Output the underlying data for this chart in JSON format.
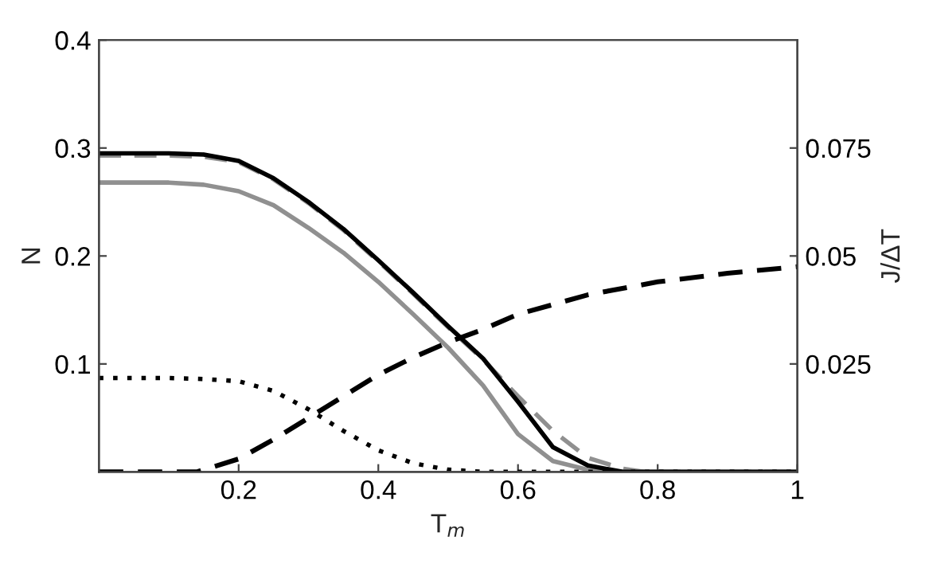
{
  "chart_data": {
    "type": "line",
    "xlabel": "T$_{m}$",
    "ylabel": "N",
    "y2label": "J/ΔT",
    "xlim": [
      0,
      1
    ],
    "xticks": [
      0.2,
      0.4,
      0.6,
      0.8,
      1
    ],
    "ylim": [
      0,
      0.4
    ],
    "yticks": [
      0.1,
      0.2,
      0.3,
      0.4
    ],
    "y2lim": [
      0,
      0.1
    ],
    "y2ticks": [
      0.025,
      0.05,
      0.075
    ],
    "grid": false,
    "legend": false,
    "marker": "none",
    "series": [
      {
        "color": "#909090",
        "line_style": "solid",
        "x": [
          0,
          0.1,
          0.15,
          0.2,
          0.25,
          0.3,
          0.35,
          0.4,
          0.45,
          0.5,
          0.55,
          0.6,
          0.65,
          0.7,
          0.73,
          1
        ],
        "values": [
          0.268,
          0.268,
          0.266,
          0.26,
          0.247,
          0.226,
          0.203,
          0.176,
          0.146,
          0.115,
          0.08,
          0.035,
          0.01,
          0.002,
          0,
          0
        ]
      },
      {
        "color": "#909090",
        "line_style": "dashed",
        "x": [
          0,
          0.1,
          0.15,
          0.2,
          0.25,
          0.3,
          0.35,
          0.4,
          0.45,
          0.5,
          0.55,
          0.6,
          0.65,
          0.7,
          0.75,
          0.78,
          1
        ],
        "values": [
          0.293,
          0.293,
          0.292,
          0.287,
          0.271,
          0.249,
          0.224,
          0.195,
          0.165,
          0.134,
          0.104,
          0.07,
          0.038,
          0.013,
          0.003,
          0,
          0
        ]
      },
      {
        "color": "#000000",
        "line_style": "solid",
        "x": [
          0,
          0.1,
          0.15,
          0.2,
          0.25,
          0.3,
          0.35,
          0.4,
          0.45,
          0.5,
          0.55,
          0.6,
          0.65,
          0.7,
          0.75,
          1
        ],
        "values": [
          0.295,
          0.295,
          0.294,
          0.288,
          0.272,
          0.25,
          0.225,
          0.196,
          0.166,
          0.135,
          0.105,
          0.065,
          0.023,
          0.006,
          0,
          0
        ]
      },
      {
        "color": "#000000",
        "line_style": "dotted",
        "x": [
          0,
          0.1,
          0.15,
          0.2,
          0.25,
          0.3,
          0.35,
          0.4,
          0.45,
          0.5,
          0.55,
          1
        ],
        "values": [
          0.087,
          0.087,
          0.086,
          0.084,
          0.075,
          0.058,
          0.038,
          0.02,
          0.008,
          0.002,
          0,
          0
        ]
      },
      {
        "color": "#000000",
        "line_style": "dashed",
        "axis": "y2",
        "x": [
          0,
          0.14,
          0.2,
          0.25,
          0.3,
          0.35,
          0.4,
          0.45,
          0.5,
          0.55,
          0.6,
          0.7,
          0.8,
          0.9,
          1
        ],
        "values": [
          0,
          0,
          0.003,
          0.0075,
          0.0125,
          0.0175,
          0.0225,
          0.0265,
          0.03,
          0.033,
          0.0365,
          0.041,
          0.044,
          0.046,
          0.0475
        ]
      }
    ]
  }
}
